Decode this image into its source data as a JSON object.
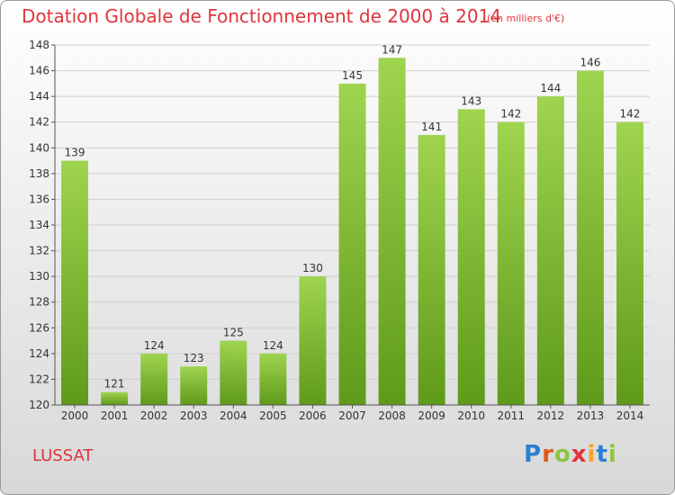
{
  "chart_data": {
    "type": "bar",
    "title": "Dotation Globale de Fonctionnement de 2000 à 2014",
    "unit": "(en milliers d'€)",
    "categories": [
      "2000",
      "2001",
      "2002",
      "2003",
      "2004",
      "2005",
      "2006",
      "2007",
      "2008",
      "2009",
      "2010",
      "2011",
      "2012",
      "2013",
      "2014"
    ],
    "values": [
      139,
      121,
      124,
      123,
      125,
      124,
      130,
      145,
      147,
      141,
      143,
      142,
      144,
      146,
      142
    ],
    "ylim": [
      120,
      148
    ],
    "yticks": [
      120,
      122,
      124,
      126,
      128,
      130,
      132,
      134,
      136,
      138,
      140,
      142,
      144,
      146,
      148
    ],
    "grid": true,
    "bar_color": "#7ab530"
  },
  "commune": "LUSSAT",
  "logo": {
    "letters": [
      "P",
      "r",
      "o",
      "x",
      "i",
      "t",
      "i"
    ]
  }
}
